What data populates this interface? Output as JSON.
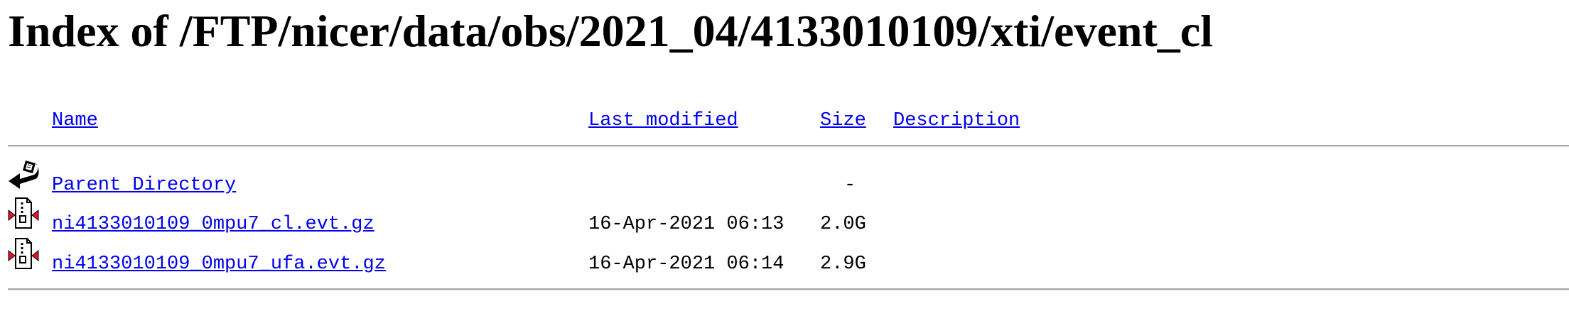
{
  "page": {
    "title": "Index of /FTP/nicer/data/obs/2021_04/4133010109/xti/event_cl"
  },
  "columns": {
    "name": "Name",
    "last_modified": "Last modified",
    "size": "Size",
    "description": "Description"
  },
  "parent": {
    "label": "Parent Directory",
    "size": "-",
    "icon": "back-icon"
  },
  "files": [
    {
      "name": "ni4133010109_0mpu7_cl.evt.gz",
      "modified": "16-Apr-2021 06:13",
      "size": "2.0G",
      "icon": "compressed-file-icon"
    },
    {
      "name": "ni4133010109_0mpu7_ufa.evt.gz",
      "modified": "16-Apr-2021 06:14",
      "size": "2.9G",
      "icon": "compressed-file-icon"
    }
  ],
  "colors": {
    "link": "#0000ee",
    "rule": "#a8a8a8",
    "icon_red": "#e8102a"
  }
}
